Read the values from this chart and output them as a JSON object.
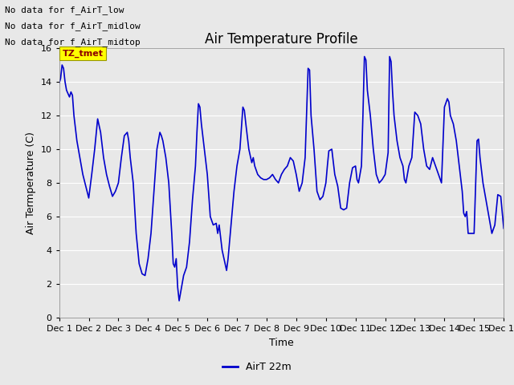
{
  "title": "Air Temperature Profile",
  "xlabel": "Time",
  "ylabel": "Air Termperature (C)",
  "ylim": [
    0,
    16
  ],
  "yticks": [
    0,
    2,
    4,
    6,
    8,
    10,
    12,
    14,
    16
  ],
  "line_color": "#0000CC",
  "line_width": 1.2,
  "bg_color": "#E8E8E8",
  "legend_label": "AirT 22m",
  "text_annotations": [
    "No data for f_AirT_low",
    "No data for f_AirT_midlow",
    "No data for f_AirT_midtop"
  ],
  "tz_label": "TZ_tmet",
  "x_tick_labels": [
    "Dec 1",
    "Dec 2",
    "Dec 3",
    "Dec 4",
    "Dec 5",
    "Dec 6",
    "Dec 7",
    "Dec 8",
    "Dec 9",
    "Dec 10",
    "Dec 11",
    "Dec 12",
    "Dec 13",
    "Dec 14",
    "Dec 15",
    "Dec 16"
  ],
  "data_points": [
    [
      0,
      13.9
    ],
    [
      0.05,
      14.2
    ],
    [
      0.1,
      15.0
    ],
    [
      0.15,
      14.8
    ],
    [
      0.2,
      14.0
    ],
    [
      0.25,
      13.5
    ],
    [
      0.3,
      13.3
    ],
    [
      0.35,
      13.1
    ],
    [
      0.4,
      13.4
    ],
    [
      0.45,
      13.2
    ],
    [
      0.5,
      12.0
    ],
    [
      0.6,
      10.5
    ],
    [
      0.7,
      9.5
    ],
    [
      0.8,
      8.5
    ],
    [
      0.9,
      7.8
    ],
    [
      1.0,
      7.1
    ],
    [
      1.1,
      8.5
    ],
    [
      1.2,
      10.0
    ],
    [
      1.3,
      11.8
    ],
    [
      1.4,
      11.0
    ],
    [
      1.5,
      9.5
    ],
    [
      1.6,
      8.5
    ],
    [
      1.7,
      7.8
    ],
    [
      1.8,
      7.2
    ],
    [
      1.9,
      7.5
    ],
    [
      2.0,
      8.0
    ],
    [
      2.1,
      9.5
    ],
    [
      2.2,
      10.8
    ],
    [
      2.3,
      11.0
    ],
    [
      2.35,
      10.5
    ],
    [
      2.4,
      9.5
    ],
    [
      2.5,
      8.0
    ],
    [
      2.6,
      5.0
    ],
    [
      2.7,
      3.2
    ],
    [
      2.8,
      2.6
    ],
    [
      2.9,
      2.5
    ],
    [
      3.0,
      3.5
    ],
    [
      3.1,
      5.0
    ],
    [
      3.2,
      7.5
    ],
    [
      3.3,
      10.0
    ],
    [
      3.4,
      11.0
    ],
    [
      3.45,
      10.8
    ],
    [
      3.5,
      10.5
    ],
    [
      3.6,
      9.5
    ],
    [
      3.7,
      8.0
    ],
    [
      3.8,
      5.0
    ],
    [
      3.85,
      3.2
    ],
    [
      3.9,
      3.0
    ],
    [
      3.95,
      3.5
    ],
    [
      4.0,
      1.8
    ],
    [
      4.05,
      1.0
    ],
    [
      4.1,
      1.5
    ],
    [
      4.2,
      2.5
    ],
    [
      4.3,
      3.0
    ],
    [
      4.4,
      4.5
    ],
    [
      4.5,
      7.0
    ],
    [
      4.6,
      9.0
    ],
    [
      4.65,
      11.0
    ],
    [
      4.7,
      12.7
    ],
    [
      4.75,
      12.5
    ],
    [
      4.8,
      11.5
    ],
    [
      4.9,
      10.0
    ],
    [
      5.0,
      8.5
    ],
    [
      5.1,
      6.0
    ],
    [
      5.2,
      5.5
    ],
    [
      5.3,
      5.6
    ],
    [
      5.35,
      5.0
    ],
    [
      5.4,
      5.5
    ],
    [
      5.5,
      4.0
    ],
    [
      5.6,
      3.2
    ],
    [
      5.65,
      2.8
    ],
    [
      5.7,
      3.5
    ],
    [
      5.8,
      5.5
    ],
    [
      5.9,
      7.5
    ],
    [
      6.0,
      9.0
    ],
    [
      6.1,
      10.0
    ],
    [
      6.2,
      12.5
    ],
    [
      6.25,
      12.3
    ],
    [
      6.3,
      11.5
    ],
    [
      6.4,
      10.0
    ],
    [
      6.5,
      9.2
    ],
    [
      6.55,
      9.5
    ],
    [
      6.6,
      9.0
    ],
    [
      6.7,
      8.5
    ],
    [
      6.8,
      8.3
    ],
    [
      6.9,
      8.2
    ],
    [
      7.0,
      8.2
    ],
    [
      7.1,
      8.3
    ],
    [
      7.2,
      8.5
    ],
    [
      7.3,
      8.2
    ],
    [
      7.4,
      8.0
    ],
    [
      7.5,
      8.5
    ],
    [
      7.6,
      8.8
    ],
    [
      7.7,
      9.0
    ],
    [
      7.8,
      9.5
    ],
    [
      7.9,
      9.3
    ],
    [
      8.0,
      8.5
    ],
    [
      8.1,
      7.5
    ],
    [
      8.2,
      8.0
    ],
    [
      8.3,
      9.5
    ],
    [
      8.4,
      14.8
    ],
    [
      8.45,
      14.7
    ],
    [
      8.5,
      12.0
    ],
    [
      8.6,
      10.0
    ],
    [
      8.7,
      7.5
    ],
    [
      8.8,
      7.0
    ],
    [
      8.9,
      7.2
    ],
    [
      9.0,
      8.0
    ],
    [
      9.05,
      9.0
    ],
    [
      9.1,
      9.9
    ],
    [
      9.2,
      10.0
    ],
    [
      9.3,
      8.5
    ],
    [
      9.4,
      7.8
    ],
    [
      9.5,
      6.5
    ],
    [
      9.6,
      6.4
    ],
    [
      9.7,
      6.5
    ],
    [
      9.8,
      8.0
    ],
    [
      9.9,
      8.9
    ],
    [
      10.0,
      9.0
    ],
    [
      10.05,
      8.2
    ],
    [
      10.1,
      8.0
    ],
    [
      10.2,
      9.0
    ],
    [
      10.25,
      12.0
    ],
    [
      10.3,
      15.5
    ],
    [
      10.35,
      15.3
    ],
    [
      10.4,
      13.5
    ],
    [
      10.5,
      12.0
    ],
    [
      10.6,
      10.0
    ],
    [
      10.7,
      8.5
    ],
    [
      10.8,
      8.0
    ],
    [
      10.9,
      8.2
    ],
    [
      11.0,
      8.5
    ],
    [
      11.1,
      9.8
    ],
    [
      11.15,
      15.5
    ],
    [
      11.2,
      15.2
    ],
    [
      11.25,
      13.4
    ],
    [
      11.3,
      12.0
    ],
    [
      11.4,
      10.5
    ],
    [
      11.5,
      9.5
    ],
    [
      11.6,
      9.0
    ],
    [
      11.65,
      8.2
    ],
    [
      11.7,
      8.0
    ],
    [
      11.8,
      9.0
    ],
    [
      11.9,
      9.5
    ],
    [
      12.0,
      12.2
    ],
    [
      12.1,
      12.0
    ],
    [
      12.2,
      11.5
    ],
    [
      12.3,
      10.0
    ],
    [
      12.4,
      9.0
    ],
    [
      12.5,
      8.8
    ],
    [
      12.6,
      9.5
    ],
    [
      12.7,
      9.0
    ],
    [
      12.8,
      8.5
    ],
    [
      12.9,
      8.0
    ],
    [
      13.0,
      12.5
    ],
    [
      13.1,
      13.0
    ],
    [
      13.15,
      12.8
    ],
    [
      13.2,
      12.0
    ],
    [
      13.3,
      11.5
    ],
    [
      13.4,
      10.5
    ],
    [
      13.5,
      9.0
    ],
    [
      13.6,
      7.5
    ],
    [
      13.65,
      6.2
    ],
    [
      13.7,
      6.0
    ],
    [
      13.75,
      6.3
    ],
    [
      13.8,
      5.0
    ],
    [
      13.9,
      5.0
    ],
    [
      14.0,
      5.0
    ],
    [
      14.1,
      10.5
    ],
    [
      14.15,
      10.6
    ],
    [
      14.2,
      9.5
    ],
    [
      14.3,
      8.0
    ],
    [
      14.4,
      7.0
    ],
    [
      14.5,
      6.0
    ],
    [
      14.6,
      5.0
    ],
    [
      14.7,
      5.5
    ],
    [
      14.8,
      7.3
    ],
    [
      14.9,
      7.2
    ],
    [
      15.0,
      5.3
    ]
  ]
}
